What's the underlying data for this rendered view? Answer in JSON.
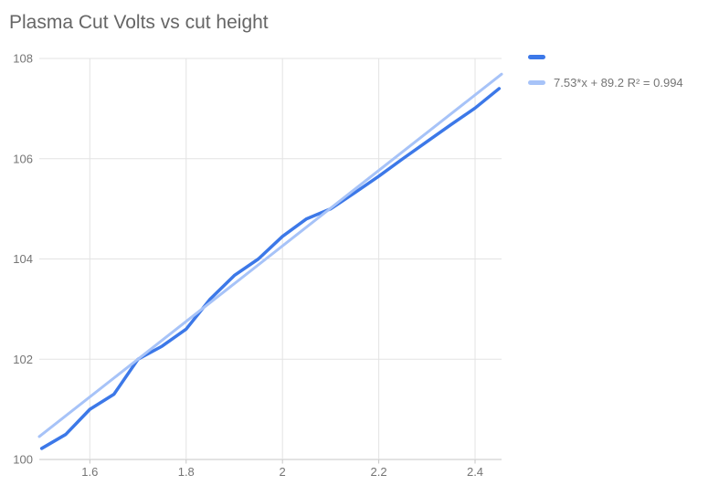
{
  "title": "Plasma Cut Volts vs cut height",
  "colors": {
    "series": "#3c78e8",
    "trendline": "#a7c3f8",
    "gridline": "#e3e3e3",
    "axis_line": "#c7c7c7",
    "title_text": "#666666",
    "label_text": "#757575"
  },
  "legend": {
    "position": "right",
    "items": [
      {
        "label": "",
        "color": "#3c78e8",
        "type": "series"
      },
      {
        "label": "7.53*x + 89.2 R² = 0.994",
        "color": "#a7c3f8",
        "type": "trendline"
      }
    ]
  },
  "chart_data": {
    "type": "line",
    "title": "Plasma Cut Volts vs cut height",
    "xlabel": "",
    "ylabel": "",
    "x": [
      1.5,
      1.55,
      1.6,
      1.65,
      1.7,
      1.75,
      1.8,
      1.85,
      1.9,
      1.95,
      2.0,
      2.05,
      2.1,
      2.15,
      2.2,
      2.25,
      2.3,
      2.35,
      2.4,
      2.45
    ],
    "series": [
      {
        "name": "",
        "values": [
          100.22,
          100.5,
          101.0,
          101.3,
          102.0,
          102.26,
          102.6,
          103.2,
          103.67,
          104.0,
          104.45,
          104.8,
          105.0,
          105.32,
          105.65,
          106.0,
          106.34,
          106.68,
          107.01,
          107.4
        ]
      }
    ],
    "trendline": {
      "label": "7.53*x + 89.2 R² = 0.994",
      "slope": 7.53,
      "intercept": 89.2,
      "r_squared": 0.994
    },
    "xlim": [
      1.495,
      2.455
    ],
    "ylim": [
      100,
      108
    ],
    "x_ticks": [
      1.6,
      1.8,
      2,
      2.2,
      2.4
    ],
    "x_tick_labels": [
      "1.6",
      "1.8",
      "2",
      "2.2",
      "2.4"
    ],
    "y_ticks": [
      100,
      102,
      104,
      106,
      108
    ],
    "y_tick_labels": [
      "100",
      "102",
      "104",
      "106",
      "108"
    ],
    "grid": true,
    "legend_position": "right"
  }
}
